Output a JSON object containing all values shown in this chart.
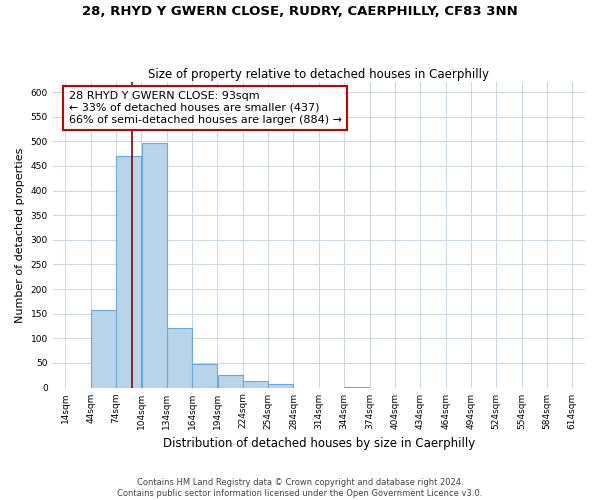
{
  "title": "28, RHYD Y GWERN CLOSE, RUDRY, CAERPHILLY, CF83 3NN",
  "subtitle": "Size of property relative to detached houses in Caerphilly",
  "xlabel": "Distribution of detached houses by size in Caerphilly",
  "ylabel": "Number of detached properties",
  "bar_edges": [
    14,
    44,
    74,
    104,
    134,
    164,
    194,
    224,
    254,
    284,
    314,
    344,
    374,
    404,
    434,
    464,
    494,
    524,
    554,
    584,
    614
  ],
  "bar_heights": [
    0,
    158,
    470,
    497,
    120,
    47,
    25,
    14,
    8,
    0,
    0,
    2,
    0,
    0,
    0,
    0,
    0,
    0,
    0,
    0
  ],
  "bar_color": "#b8d4eb",
  "bar_edge_color": "#6aaad4",
  "property_line_x": 93,
  "property_line_color": "#8b0000",
  "annotation_text": "28 RHYD Y GWERN CLOSE: 93sqm\n← 33% of detached houses are smaller (437)\n66% of semi-detached houses are larger (884) →",
  "annotation_box_color": "#ffffff",
  "annotation_box_edge_color": "#cc0000",
  "ylim": [
    0,
    620
  ],
  "yticks": [
    0,
    50,
    100,
    150,
    200,
    250,
    300,
    350,
    400,
    450,
    500,
    550,
    600
  ],
  "xtick_labels": [
    "14sqm",
    "44sqm",
    "74sqm",
    "104sqm",
    "134sqm",
    "164sqm",
    "194sqm",
    "224sqm",
    "254sqm",
    "284sqm",
    "314sqm",
    "344sqm",
    "374sqm",
    "404sqm",
    "434sqm",
    "464sqm",
    "494sqm",
    "524sqm",
    "554sqm",
    "584sqm",
    "614sqm"
  ],
  "xtick_positions": [
    14,
    44,
    74,
    104,
    134,
    164,
    194,
    224,
    254,
    284,
    314,
    344,
    374,
    404,
    434,
    464,
    494,
    524,
    554,
    584,
    614
  ],
  "grid_color": "#c8d8e8",
  "background_color": "#ffffff",
  "footer_text": "Contains HM Land Registry data © Crown copyright and database right 2024.\nContains public sector information licensed under the Open Government Licence v3.0.",
  "title_fontsize": 9.5,
  "subtitle_fontsize": 8.5,
  "xlabel_fontsize": 8.5,
  "ylabel_fontsize": 8,
  "tick_fontsize": 6.5,
  "footer_fontsize": 6,
  "annotation_fontsize": 8
}
